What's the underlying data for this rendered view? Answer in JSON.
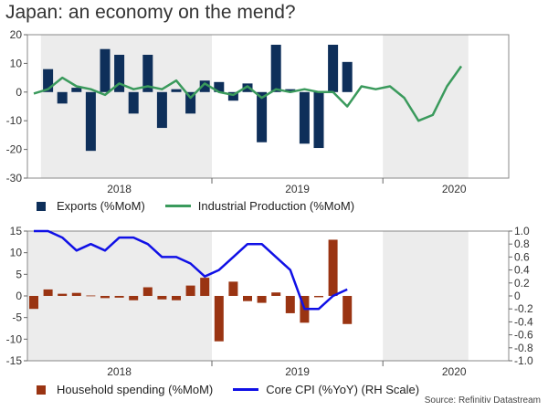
{
  "title": "Japan: an economy on the mend?",
  "source": "Source: Refinitiv Datastream",
  "colors": {
    "exports": "#0e2f5a",
    "industrial": "#3a9a5c",
    "household": "#9a3412",
    "cpi": "#1010e6",
    "shade": "#ececec"
  },
  "chart_data": [
    {
      "type": "bar",
      "title": "",
      "x_axis": {
        "year_labels": [
          "2018",
          "2019",
          "2020"
        ]
      },
      "y_axis": {
        "ylim": [
          -30,
          20
        ],
        "ticks": [
          "20",
          "10",
          "0",
          "-10",
          "-20",
          "-30"
        ]
      },
      "shaded_periods": [
        [
          "2018-01",
          "2018-12"
        ],
        [
          "2020-01",
          "2020-06"
        ]
      ],
      "months": [
        "2017-12",
        "2018-01",
        "2018-02",
        "2018-03",
        "2018-04",
        "2018-05",
        "2018-06",
        "2018-07",
        "2018-08",
        "2018-09",
        "2018-10",
        "2018-11",
        "2018-12",
        "2019-01",
        "2019-02",
        "2019-03",
        "2019-04",
        "2019-05",
        "2019-06",
        "2019-07",
        "2019-08",
        "2019-09",
        "2019-10",
        "2019-11",
        "2019-12",
        "2020-01",
        "2020-02",
        "2020-03",
        "2020-04",
        "2020-05",
        "2020-06"
      ],
      "series": [
        {
          "name": "Exports (%MoM)",
          "kind": "bar",
          "values": [
            null,
            8,
            -4,
            1.5,
            -20.5,
            15,
            13,
            -7.5,
            13,
            -12.5,
            1,
            -7.5,
            4,
            3.5,
            -3,
            3,
            -17.5,
            16.5,
            1,
            -18,
            -19.5,
            16.5,
            10.5,
            null,
            null,
            null,
            null,
            null,
            null,
            null,
            null
          ]
        },
        {
          "name": "Industrial Production (%MoM)",
          "kind": "line",
          "values": [
            -0.5,
            1,
            5,
            2,
            1,
            -1,
            3,
            1,
            2,
            1,
            4,
            -2,
            3,
            0,
            -1,
            2,
            -2,
            1,
            0,
            1,
            0,
            0,
            -5,
            2,
            1,
            2,
            -2,
            -10,
            -8,
            2,
            9
          ]
        }
      ]
    },
    {
      "type": "bar",
      "title": "",
      "x_axis": {
        "year_labels": [
          "2018",
          "2019",
          "2020"
        ]
      },
      "y_axis_left": {
        "ylim": [
          -15,
          15
        ],
        "ticks": [
          "15",
          "10",
          "5",
          "0",
          "-5",
          "-10",
          "-15"
        ]
      },
      "y_axis_right": {
        "ylim": [
          -1.0,
          1.0
        ],
        "ticks": [
          "1.0",
          "0.8",
          "0.6",
          "0.4",
          "0.2",
          "0",
          "-0.2",
          "-0.4",
          "-0.6",
          "-0.8",
          "-1.0"
        ]
      },
      "shaded_periods": [
        [
          "2017-10",
          "2018-12"
        ],
        [
          "2020-01",
          "2020-06"
        ]
      ],
      "months": [
        "2017-12",
        "2018-01",
        "2018-02",
        "2018-03",
        "2018-04",
        "2018-05",
        "2018-06",
        "2018-07",
        "2018-08",
        "2018-09",
        "2018-10",
        "2018-11",
        "2018-12",
        "2019-01",
        "2019-02",
        "2019-03",
        "2019-04",
        "2019-05",
        "2019-06",
        "2019-07",
        "2019-08",
        "2019-09",
        "2019-10",
        "2019-11",
        "2019-12",
        "2020-01",
        "2020-02",
        "2020-03",
        "2020-04",
        "2020-05",
        "2020-06"
      ],
      "series": [
        {
          "name": "Household spending (%MoM)",
          "kind": "bar",
          "axis": "left",
          "values": [
            -3,
            1.5,
            0.5,
            0.7,
            0.1,
            -0.5,
            -0.4,
            -1,
            2,
            -0.8,
            -1,
            2.4,
            4.2,
            -10.5,
            3.3,
            -1.2,
            -1.6,
            0.8,
            -4,
            -6.2,
            -0.3,
            13,
            -6.5,
            null,
            null,
            null,
            null,
            null,
            null,
            null,
            null
          ]
        },
        {
          "name": "Core CPI (%YoY) (RH Scale)",
          "kind": "line",
          "axis": "right",
          "x_months": [
            "2017-12",
            "2018-01",
            "2018-02",
            "2018-03",
            "2018-04",
            "2018-05",
            "2018-06",
            "2018-07",
            "2018-08",
            "2018-09",
            "2018-10",
            "2018-11",
            "2018-12",
            "2019-01",
            "2019-02",
            "2019-03",
            "2019-04",
            "2019-05",
            "2019-06",
            "2019-07",
            "2019-08",
            "2019-09",
            "2019-10",
            "2019-11",
            "2019-12",
            "2020-01",
            "2020-02",
            "2020-03",
            "2020-04"
          ],
          "values": [
            1.0,
            1.0,
            0.9,
            0.7,
            0.8,
            0.7,
            0.9,
            0.9,
            0.8,
            0.6,
            0.6,
            0.5,
            0.3,
            0.4,
            0.6,
            0.8,
            0.8,
            0.6,
            0.4,
            -0.2,
            -0.2,
            0.0,
            0.1,
            null,
            null,
            null,
            null,
            null,
            null
          ]
        }
      ]
    }
  ],
  "legend": {
    "top": [
      {
        "label": "Exports (%MoM)",
        "kind": "box"
      },
      {
        "label": "Industrial Production (%MoM)",
        "kind": "line"
      }
    ],
    "bottom": [
      {
        "label": "Household spending (%MoM)",
        "kind": "box"
      },
      {
        "label": "Core CPI (%YoY) (RH Scale)",
        "kind": "line"
      }
    ]
  }
}
